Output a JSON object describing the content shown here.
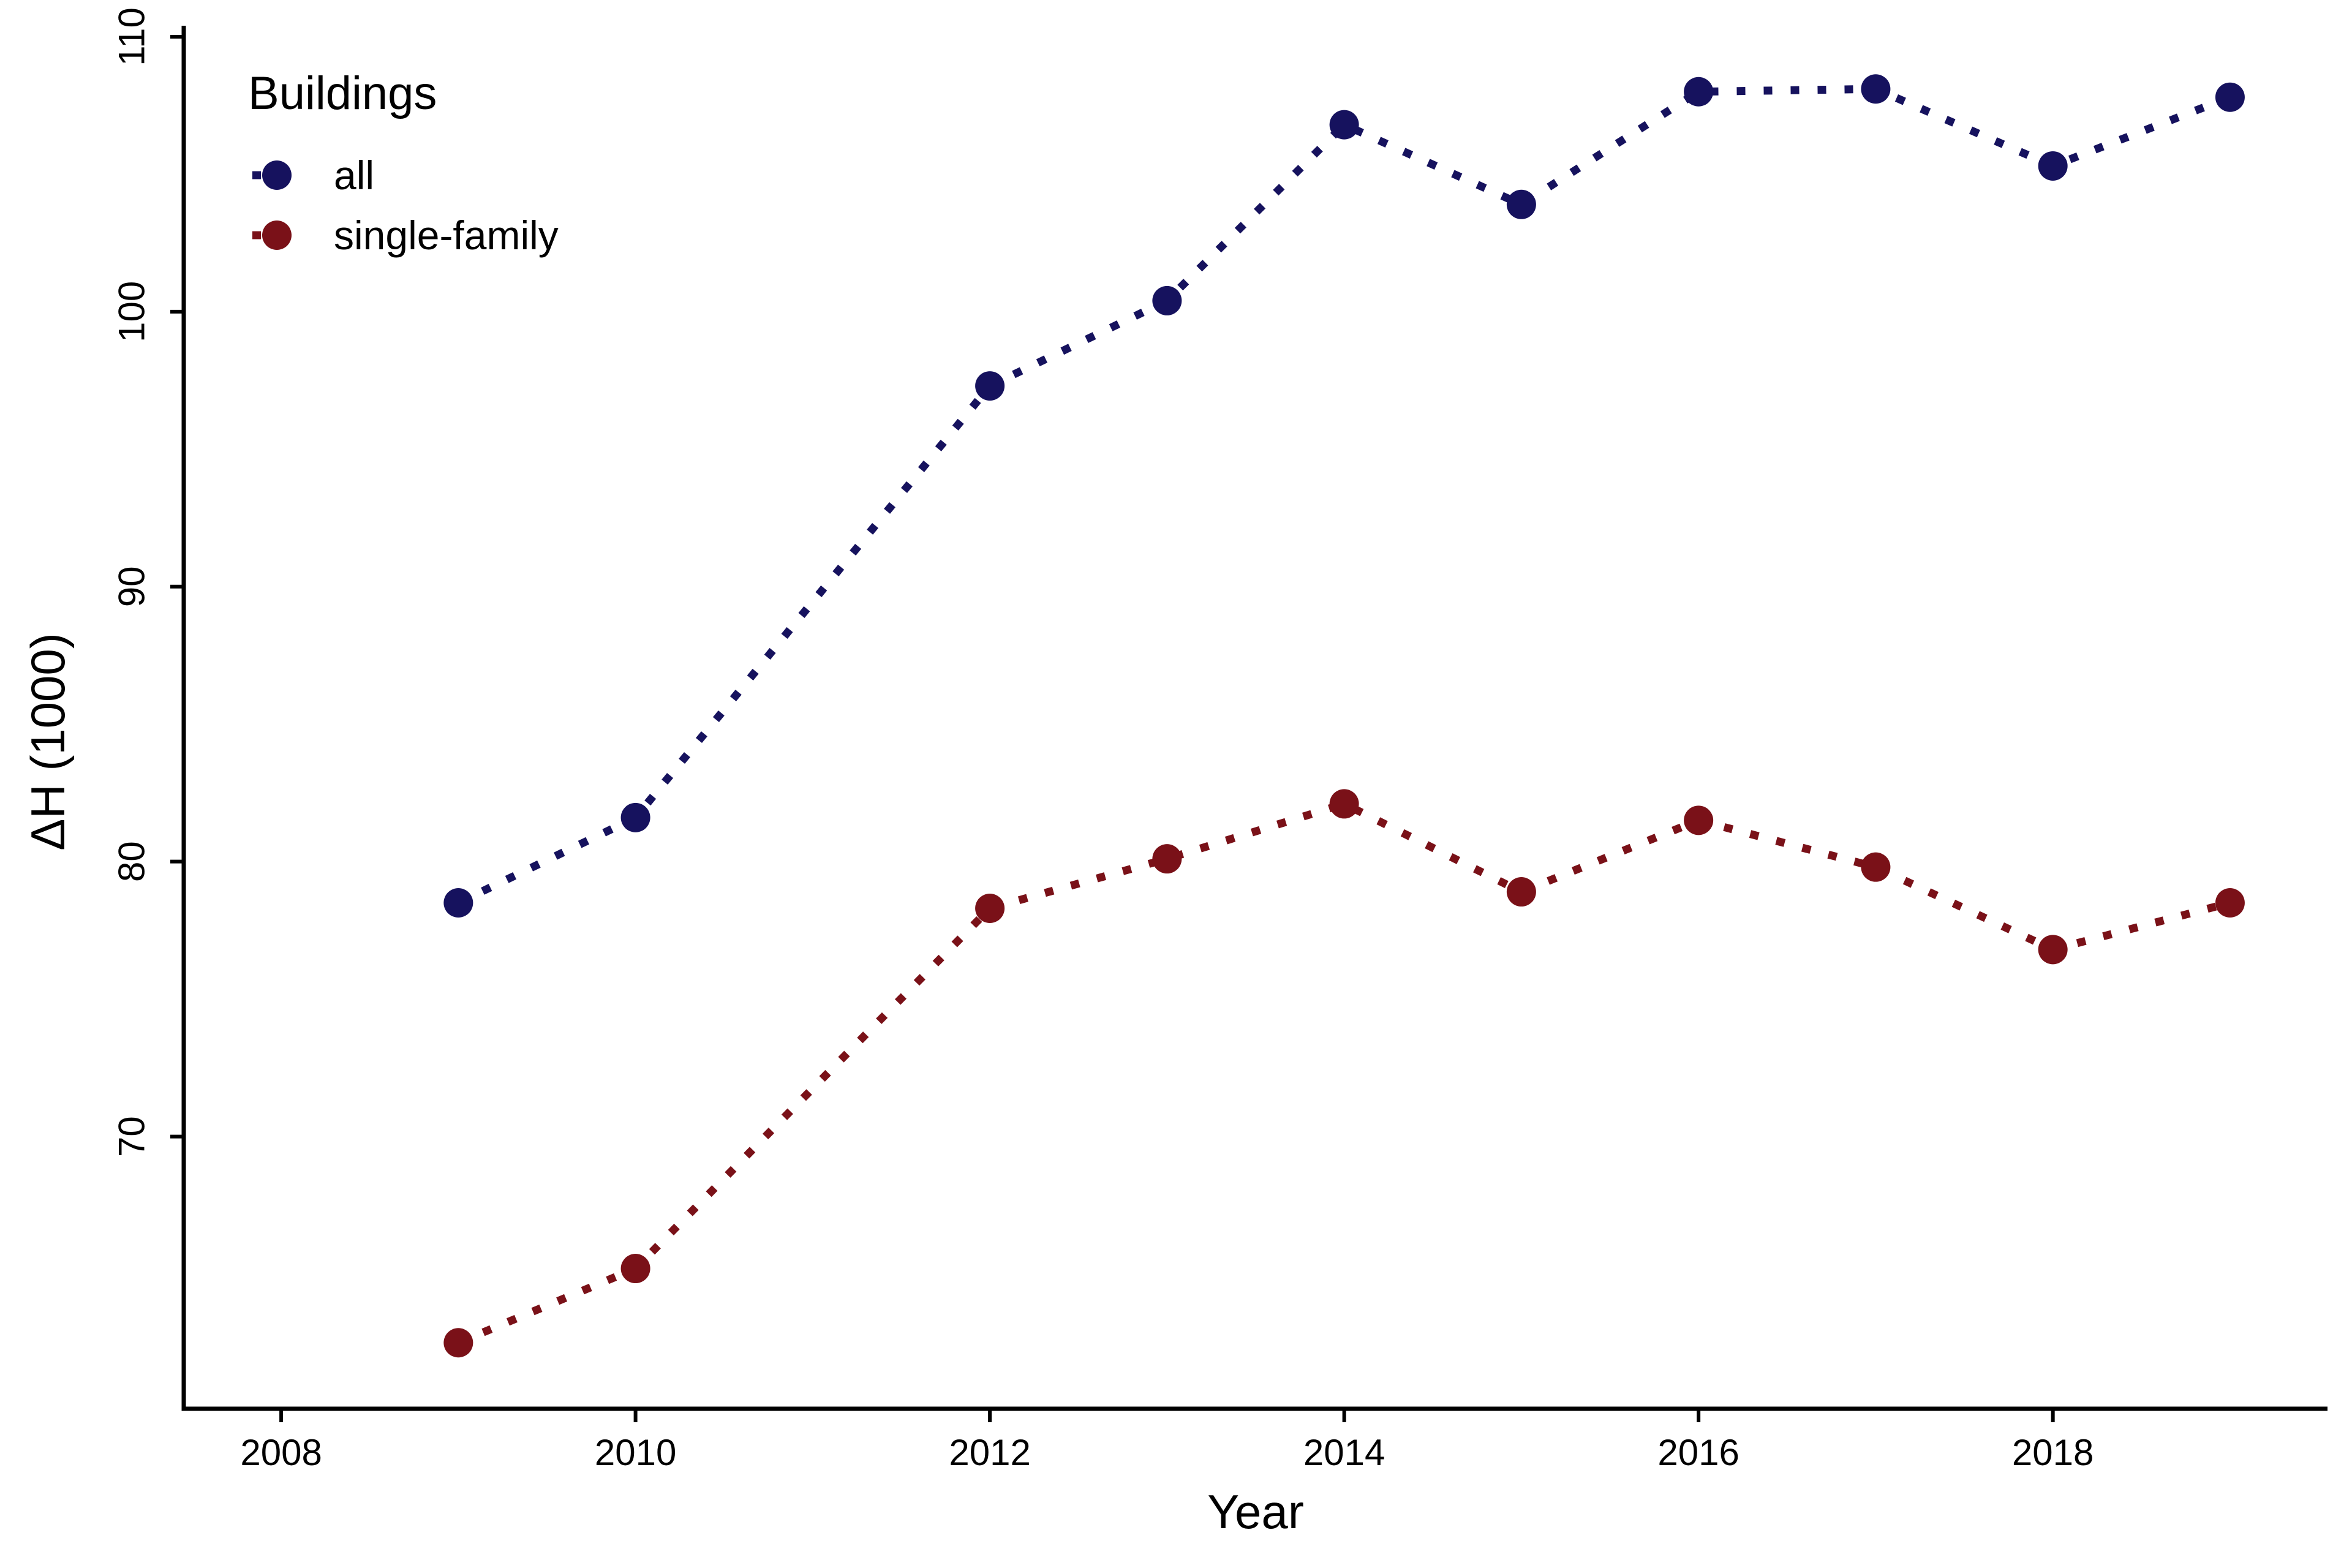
{
  "chart_data": {
    "type": "line",
    "title": "",
    "xlabel": "Year",
    "ylabel": "ΔH (1000)",
    "xlim": [
      2007.45,
      2019.55
    ],
    "ylim": [
      60.1,
      110.4
    ],
    "xticks": [
      2008,
      2010,
      2012,
      2014,
      2016,
      2018
    ],
    "xtick_labels": [
      "2008",
      "2010",
      "2012",
      "2014",
      "2016",
      "2018"
    ],
    "yticks": [
      70,
      80,
      90,
      100,
      110
    ],
    "ytick_labels": [
      "70",
      "80",
      "90",
      "100",
      "110"
    ],
    "grid": false,
    "line_style": "dotted",
    "markers": true,
    "legend": {
      "title": "Buildings",
      "position": "top-left",
      "entries": [
        "all",
        "single-family"
      ]
    },
    "x": [
      2009,
      2010,
      2011,
      2012,
      2013,
      2014,
      2015,
      2016,
      2017,
      2018,
      2019
    ],
    "series": [
      {
        "name": "all",
        "color": "#16125e",
        "values": [
          78.5,
          81.6,
          null,
          97.3,
          100.4,
          106.8,
          103.9,
          108.0,
          108.1,
          105.3,
          107.8
        ]
      },
      {
        "name": "single-family",
        "color": "#7a1118",
        "values": [
          62.5,
          65.2,
          null,
          78.3,
          80.1,
          82.1,
          78.9,
          81.5,
          79.8,
          76.8,
          78.5
        ]
      }
    ]
  }
}
